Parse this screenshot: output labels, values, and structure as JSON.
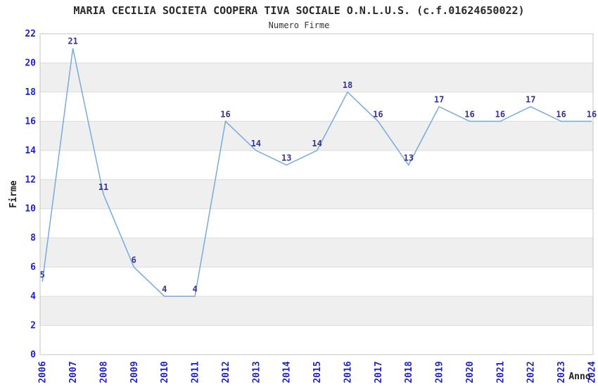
{
  "header": {
    "title": "MARIA CECILIA SOCIETA COOPERA TIVA SOCIALE O.N.L.U.S. (c.f.01624650022)",
    "subtitle": "Numero Firme"
  },
  "chart_data": {
    "type": "line",
    "title": "MARIA CECILIA SOCIETA COOPERA TIVA SOCIALE O.N.L.U.S. (c.f.01624650022)",
    "subtitle": "Numero Firme",
    "xlabel": "Anno",
    "ylabel": "Firme",
    "x": [
      2006,
      2007,
      2008,
      2009,
      2010,
      2011,
      2012,
      2013,
      2014,
      2015,
      2016,
      2017,
      2018,
      2019,
      2020,
      2021,
      2022,
      2023,
      2024
    ],
    "series": [
      {
        "name": "Numero Firme",
        "values": [
          5,
          21,
          11,
          6,
          4,
          4,
          16,
          14,
          13,
          14,
          18,
          16,
          13,
          17,
          16,
          16,
          17,
          16,
          16
        ]
      }
    ],
    "ylim": [
      0,
      22
    ],
    "ytick_step": 2,
    "grid": true,
    "legend": "none",
    "show_point_labels": true,
    "band_fill": "#efefef",
    "colors": {
      "line": "#79aade",
      "value_labels": "#333399",
      "tick_labels": "#2222cc",
      "axis_titles": "#222222",
      "grid": "#dcdcdc",
      "plot_border": "#c6c6c6",
      "title": "#2b2b2b",
      "background": "#ffffff"
    }
  }
}
